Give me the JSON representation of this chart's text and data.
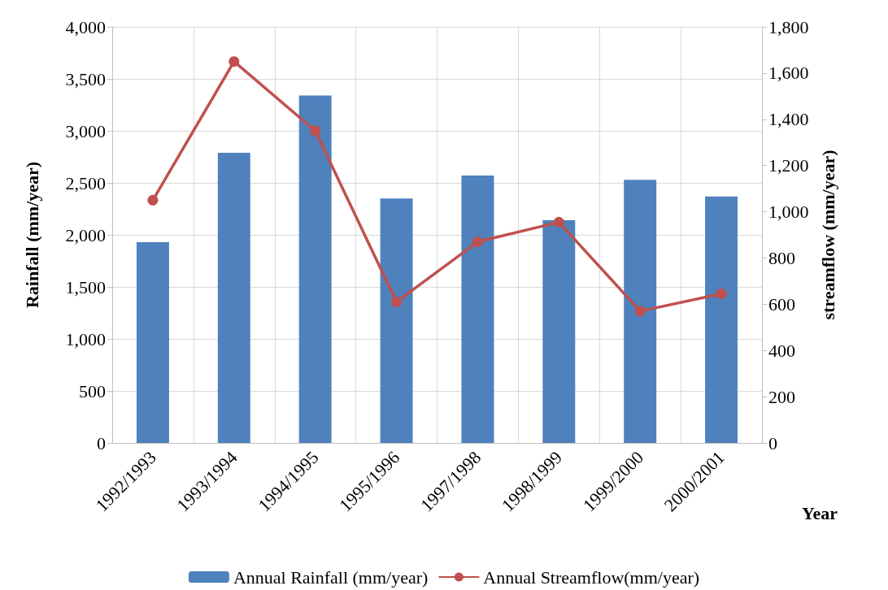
{
  "chart_data": {
    "type": "bar",
    "categories": [
      "1992/1993",
      "1993/1994",
      "1994/1995",
      "1995/1996",
      "1997/1998",
      "1998/1999",
      "1999/2000",
      "2000/2001"
    ],
    "series": [
      {
        "name": "Annual Rainfall (mm/year)",
        "color": "#4f81bd",
        "values": [
          1930,
          2790,
          3340,
          2350,
          2570,
          2140,
          2530,
          2370
        ]
      },
      {
        "name": "Annual Streamflow(mm/year)",
        "type": "line",
        "axis": "y2",
        "color": "#c0504d",
        "marker": "circle",
        "values": [
          1050,
          1650,
          1350,
          610,
          870,
          955,
          570,
          645
        ]
      }
    ],
    "xlabel": "Year",
    "ylabel": "Rainfall (mm/year)",
    "y2label": "streamflow (mm/year)",
    "ylim": [
      0,
      4000
    ],
    "yticks": [
      {
        "value": 0,
        "label": "0"
      },
      {
        "value": 500,
        "label": "500"
      },
      {
        "value": 1000,
        "label": "1,000"
      },
      {
        "value": 1500,
        "label": "1,500"
      },
      {
        "value": 2000,
        "label": "2,000"
      },
      {
        "value": 2500,
        "label": "2,500"
      },
      {
        "value": 3000,
        "label": "3,000"
      },
      {
        "value": 3500,
        "label": "3,500"
      },
      {
        "value": 4000,
        "label": "4,000"
      }
    ],
    "y2lim": [
      0,
      1800
    ],
    "y2ticks": [
      {
        "value": 0,
        "label": "0"
      },
      {
        "value": 200,
        "label": "200"
      },
      {
        "value": 400,
        "label": "400"
      },
      {
        "value": 600,
        "label": "600"
      },
      {
        "value": 800,
        "label": "800"
      },
      {
        "value": 1000,
        "label": "1,000"
      },
      {
        "value": 1200,
        "label": "1,200"
      },
      {
        "value": 1400,
        "label": "1,400"
      },
      {
        "value": 1600,
        "label": "1,600"
      },
      {
        "value": 1800,
        "label": "1,800"
      }
    ],
    "grid": true,
    "legend": "bottom"
  }
}
